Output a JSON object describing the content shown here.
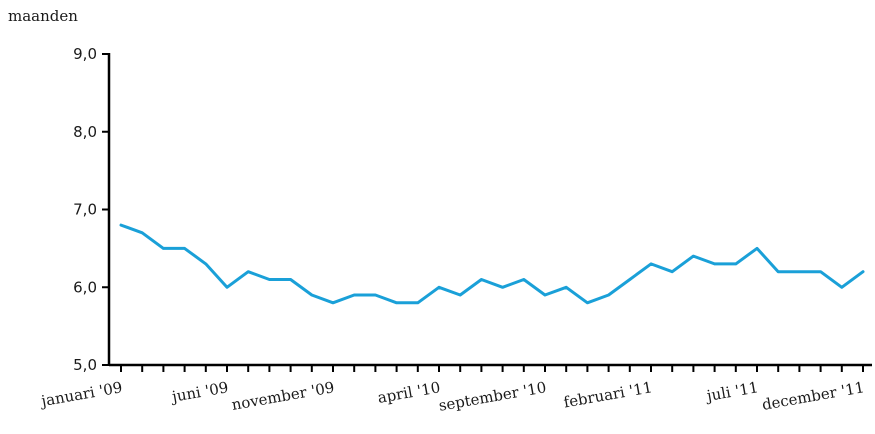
{
  "chart_data": {
    "type": "line",
    "title": "",
    "ylabel": "maanden",
    "xlabel": "",
    "ylim": [
      5.0,
      9.0
    ],
    "yticks": [
      "5,0",
      "6,0",
      "7,0",
      "8,0",
      "9,0"
    ],
    "ytick_values": [
      5.0,
      6.0,
      7.0,
      8.0,
      9.0
    ],
    "x_tick_labels": [
      "januari '09",
      "juni '09",
      "november '09",
      "april '10",
      "september '10",
      "februari '11",
      "juli '11",
      "december '11"
    ],
    "x_tick_indices": [
      0,
      5,
      10,
      15,
      20,
      25,
      30,
      35
    ],
    "grid": false,
    "legend": "none",
    "line_color": "#1aa0d8",
    "series": [
      {
        "values": [
          6.8,
          6.7,
          6.5,
          6.5,
          6.3,
          6.0,
          6.2,
          6.1,
          6.1,
          5.9,
          5.8,
          5.9,
          5.9,
          5.8,
          5.8,
          6.0,
          5.9,
          6.1,
          6.0,
          6.1,
          5.9,
          6.0,
          5.8,
          5.9,
          6.1,
          6.3,
          6.2,
          6.4,
          6.3,
          6.3,
          6.5,
          6.2,
          6.2,
          6.2,
          6.0,
          6.2
        ]
      }
    ]
  }
}
